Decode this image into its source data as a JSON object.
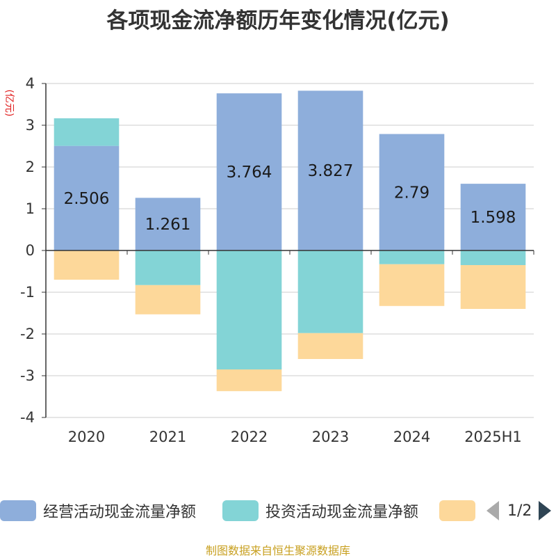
{
  "chart_data": {
    "type": "bar",
    "stacked": true,
    "title": "各项现金流净额历年变化情况(亿元)",
    "ylabel": "(亿元)",
    "ylim": [
      -4,
      4
    ],
    "yticks": [
      4,
      3,
      2,
      1,
      0,
      -1,
      -2,
      -3,
      -4
    ],
    "grid": true,
    "categories": [
      "2020",
      "2021",
      "2022",
      "2023",
      "2024",
      "2025H1"
    ],
    "series": [
      {
        "name": "经营活动现金流量净额",
        "color": "#8eaedb",
        "values": [
          2.506,
          1.261,
          3.764,
          3.827,
          2.79,
          1.598
        ],
        "labels": [
          "2.506",
          "1.261",
          "3.764",
          "3.827",
          "2.79",
          "1.598"
        ]
      },
      {
        "name": "投资活动现金流量净额",
        "color": "#83d4d6",
        "values": [
          0.66,
          -0.83,
          -2.85,
          -1.98,
          -0.33,
          -0.35
        ]
      },
      {
        "name": "",
        "color": "#fdd89a",
        "values": [
          -0.7,
          -0.7,
          -0.52,
          -0.62,
          -1.0,
          -1.05
        ]
      }
    ]
  },
  "legend": {
    "items": [
      {
        "label": "经营活动现金流量净额",
        "color": "#8eaedb"
      },
      {
        "label": "投资活动现金流量净额",
        "color": "#83d4d6"
      },
      {
        "label": "",
        "color": "#fdd89a"
      }
    ],
    "page_indicator": "1/2"
  },
  "source_note": "制图数据来自恒生聚源数据库"
}
